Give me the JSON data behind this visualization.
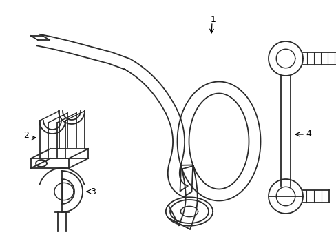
{
  "bg_color": "#ffffff",
  "line_color": "#2a2a2a",
  "line_width": 1.3,
  "label_color": "#000000",
  "label_fontsize": 9,
  "figsize": [
    4.89,
    3.6
  ],
  "dpi": 100
}
